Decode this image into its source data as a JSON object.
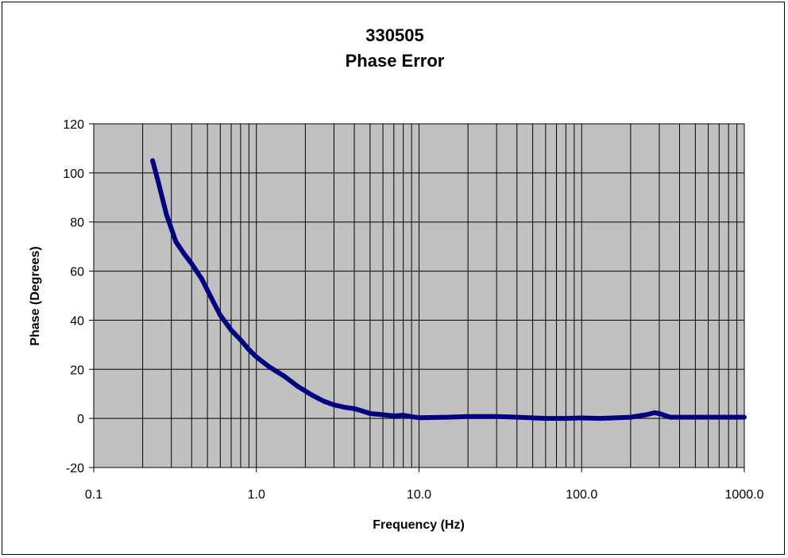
{
  "chart_data": {
    "type": "line",
    "title": "330505",
    "subtitle": "Phase Error",
    "xlabel": "Frequency (Hz)",
    "ylabel": "Phase (Degrees)",
    "xscale": "log",
    "xlim": [
      0.1,
      1000.0
    ],
    "ylim": [
      -20,
      120
    ],
    "xticks": [
      "0.1",
      "1.0",
      "10.0",
      "100.0",
      "1000.0"
    ],
    "yticks": [
      "-20",
      "0",
      "20",
      "40",
      "60",
      "80",
      "100",
      "120"
    ],
    "grid": true,
    "legend": "none",
    "colors": {
      "plot_background": "#c0c0c0",
      "line": "#000080",
      "grid": "#000000"
    },
    "series": [
      {
        "x": [
          0.23,
          0.25,
          0.28,
          0.32,
          0.36,
          0.4,
          0.46,
          0.52,
          0.6,
          0.7,
          0.8,
          0.9,
          1.0,
          1.2,
          1.5,
          1.8,
          2.2,
          2.6,
          3.0,
          3.5,
          4.0,
          4.5,
          5.0,
          6.0,
          7.0,
          8.0,
          9.0,
          10.0,
          15.0,
          20.0,
          30.0,
          40.0,
          60.0,
          80.0,
          100.0,
          130.0,
          200.0,
          250.0,
          280.0,
          300.0,
          350.0,
          500.0,
          1000.0
        ],
        "values": [
          105,
          96,
          83,
          72,
          67,
          63,
          57,
          50,
          42,
          36,
          32,
          28,
          25,
          21,
          17,
          13,
          9.5,
          7,
          5.5,
          4.5,
          4,
          3,
          2,
          1.5,
          1,
          1.3,
          0.7,
          0.3,
          0.5,
          0.8,
          0.8,
          0.5,
          0,
          0,
          0.2,
          0,
          0.5,
          1.5,
          2.3,
          2,
          0.5,
          0.5,
          0.5
        ]
      }
    ]
  }
}
